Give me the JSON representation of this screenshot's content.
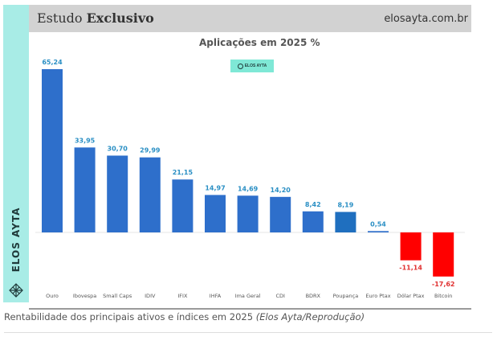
{
  "header": {
    "title_regular": "Estudo",
    "title_bold": "Exclusivo",
    "site": "elosayta.com.br"
  },
  "side_brand": {
    "text": "ELOS AYTA",
    "icon": "elos-ayta-logo-icon"
  },
  "badge": {
    "text": "ELOS AYTA",
    "icon": "elos-ayta-logo-icon"
  },
  "caption": {
    "text": "Rentabilidade dos principais ativos e índices em 2025 ",
    "credit": "(Elos Ayta/Reprodução)"
  },
  "colors": {
    "positive": "#2e6fcb",
    "positive_alt": "#1f6fbf",
    "negative": "#ff0000",
    "positive_label": "#2a8fc4",
    "negative_label": "#e03030"
  },
  "chart_data": {
    "type": "bar",
    "title": "Aplicações em 2025 %",
    "xlabel": "",
    "ylabel": "",
    "categories": [
      "Ouro",
      "Ibovespa",
      "Small Caps",
      "IDIV",
      "IFIX",
      "IHFA",
      "Ima Geral",
      "CDI",
      "BDRX",
      "Poupança",
      "Euro Ptax",
      "Dólar Ptax",
      "Bitcoin"
    ],
    "values": [
      65.24,
      33.95,
      30.7,
      29.99,
      21.15,
      14.97,
      14.69,
      14.2,
      8.42,
      8.19,
      0.54,
      -11.14,
      -17.62
    ],
    "labels": [
      "65,24",
      "33,95",
      "30,70",
      "29,99",
      "21,15",
      "14,97",
      "14,69",
      "14,20",
      "8,42",
      "8,19",
      "0,54",
      "-11,14",
      "-17,62"
    ],
    "ylim": [
      -17.62,
      65.24
    ],
    "grid": false,
    "legend": "none"
  }
}
